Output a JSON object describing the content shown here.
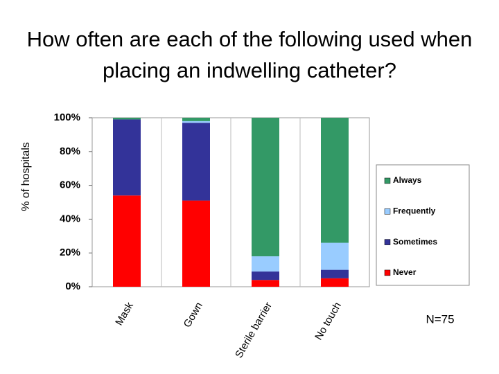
{
  "chart_data": {
    "type": "stacked_bar",
    "title": "How often are each of the following used when placing an indwelling catheter?",
    "y_label": "% of hospitals",
    "annotation": "N=75",
    "categories": [
      "Mask",
      "Gown",
      "Sterile barrier",
      "No touch"
    ],
    "series": [
      {
        "name": "Never",
        "color": "#ff0000",
        "values": [
          54,
          51,
          4,
          5
        ]
      },
      {
        "name": "Sometimes",
        "color": "#333399",
        "values": [
          45,
          46,
          5,
          5
        ]
      },
      {
        "name": "Frequently",
        "color": "#99ccff",
        "values": [
          0,
          1,
          9,
          16
        ]
      },
      {
        "name": "Always",
        "color": "#339966",
        "values": [
          1,
          2,
          82,
          74
        ]
      }
    ],
    "ylim": [
      0,
      100
    ],
    "yticks": [
      {
        "value": 0,
        "label": "0%"
      },
      {
        "value": 20,
        "label": "20%"
      },
      {
        "value": 40,
        "label": "40%"
      },
      {
        "value": 60,
        "label": "60%"
      },
      {
        "value": 80,
        "label": "80%"
      },
      {
        "value": 100,
        "label": "100%"
      }
    ],
    "legend": "right"
  }
}
